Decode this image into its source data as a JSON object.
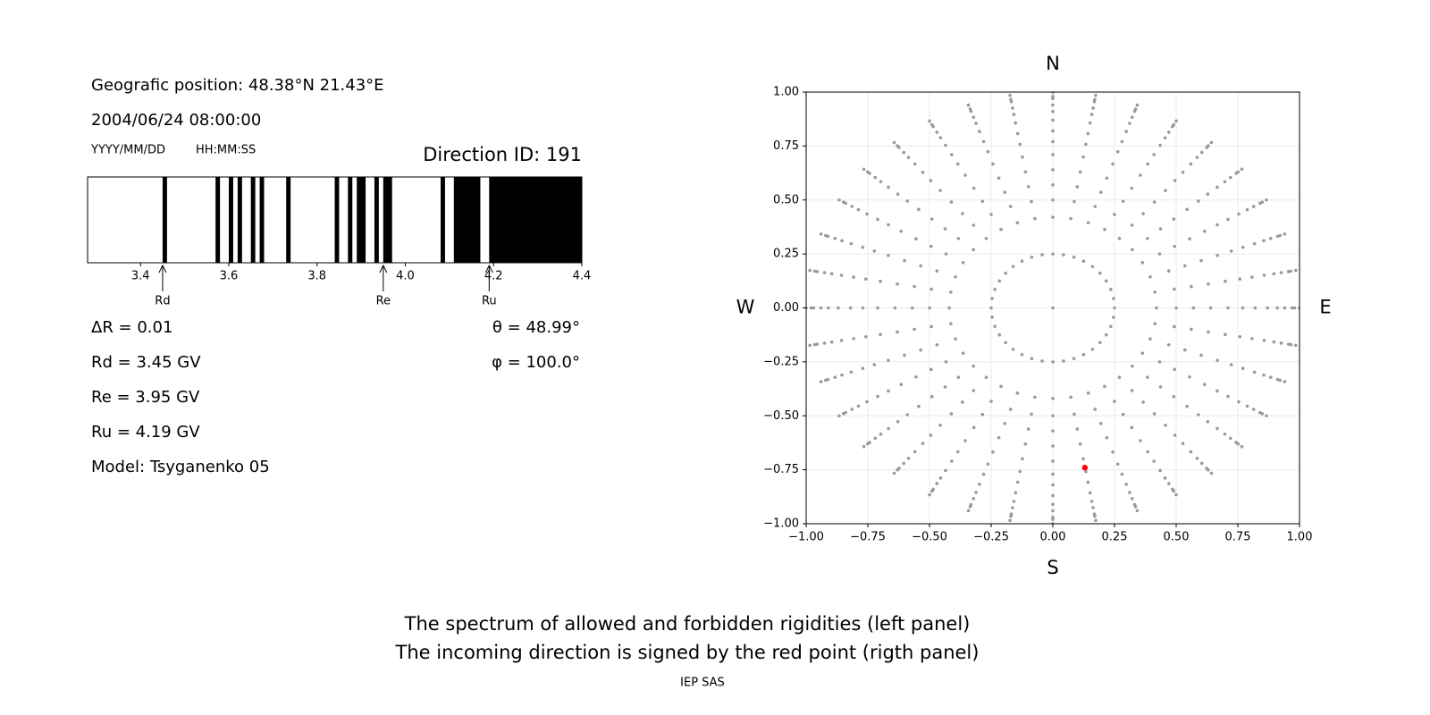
{
  "header": {
    "position": "Geografic position: 48.38°N 21.43°E",
    "datetime": "2004/06/24 08:00:00",
    "date_format": "YYYY/MM/DD",
    "time_format": "HH:MM:SS",
    "direction_id": "Direction ID: 191"
  },
  "parameters": {
    "left": [
      "ΔR = 0.01",
      "Rd = 3.45 GV",
      "Re = 3.95 GV",
      "Ru = 4.19 GV",
      "Model: Tsyganenko 05"
    ],
    "right": [
      "θ = 48.99°",
      "φ = 100.0°"
    ]
  },
  "chart_data": [
    {
      "type": "spectrum",
      "xlim": [
        3.28,
        4.4
      ],
      "xticks": [
        3.4,
        3.6,
        3.8,
        {
          "value": 4,
          "label": "4.0"
        },
        4.2,
        4.4
      ],
      "bands": [
        [
          3.45,
          3.46
        ],
        [
          3.57,
          3.58
        ],
        [
          3.6,
          3.61
        ],
        [
          3.62,
          3.63
        ],
        [
          3.65,
          3.66
        ],
        [
          3.67,
          3.68
        ],
        [
          3.73,
          3.74
        ],
        [
          3.84,
          3.85
        ],
        [
          3.87,
          3.88
        ],
        [
          3.89,
          3.91
        ],
        [
          3.93,
          3.94
        ],
        [
          3.95,
          3.97
        ],
        [
          4.08,
          4.09
        ],
        [
          4.11,
          4.17
        ],
        [
          4.19,
          4.4
        ]
      ],
      "band_color": "#000000",
      "markers": [
        {
          "label": "Rd",
          "value": 3.45
        },
        {
          "label": "Re",
          "value": 3.95
        },
        {
          "label": "Ru",
          "value": 4.19
        }
      ]
    },
    {
      "type": "direction-map",
      "compass": {
        "top": "N",
        "bottom": "S",
        "left": "W",
        "right": "E"
      },
      "xlim": [
        -1,
        1
      ],
      "ylim": [
        -1,
        1
      ],
      "xticks": [
        {
          "value": -1,
          "label": "−1.00"
        },
        {
          "value": -0.75,
          "label": "−0.75"
        },
        {
          "value": -0.5,
          "label": "−0.50"
        },
        {
          "value": -0.25,
          "label": "−0.25"
        },
        {
          "value": 0,
          "label": "0.00"
        },
        {
          "value": 0.25,
          "label": "0.25"
        },
        {
          "value": 0.5,
          "label": "0.50"
        },
        {
          "value": 0.75,
          "label": "0.75"
        },
        {
          "value": 1,
          "label": "1.00"
        }
      ],
      "yticks": [
        {
          "value": -1,
          "label": "−1.00"
        },
        {
          "value": -0.75,
          "label": "−0.75"
        },
        {
          "value": -0.5,
          "label": "−0.50"
        },
        {
          "value": -0.25,
          "label": "−0.25"
        },
        {
          "value": 0,
          "label": "0.00"
        },
        {
          "value": 0.25,
          "label": "0.25"
        },
        {
          "value": 0.5,
          "label": "0.50"
        },
        {
          "value": 0.75,
          "label": "0.75"
        },
        {
          "value": 1,
          "label": "1.00"
        }
      ],
      "grid": true,
      "points": {
        "color": "#999999",
        "r": [
          0,
          0.25,
          0.42,
          0.5,
          0.57,
          0.64,
          0.71,
          0.77,
          0.82,
          0.87,
          0.91,
          0.94,
          0.97,
          0.98,
          1.0
        ],
        "azimuth": [
          0,
          10,
          20,
          30,
          40,
          50,
          60,
          70,
          80,
          90,
          100,
          110,
          120,
          130,
          140,
          150,
          160,
          170,
          180,
          190,
          200,
          210,
          220,
          230,
          240,
          250,
          260,
          270,
          280,
          290,
          300,
          310,
          320,
          330,
          340,
          350
        ]
      },
      "highlight": {
        "x": 0.13,
        "y": -0.74,
        "color": "#ff0000"
      }
    }
  ],
  "caption": [
    "The spectrum of allowed and forbidden rigidities (left panel)",
    "The incoming direction is signed by the red point (rigth panel)"
  ],
  "footer": "IEP SAS"
}
